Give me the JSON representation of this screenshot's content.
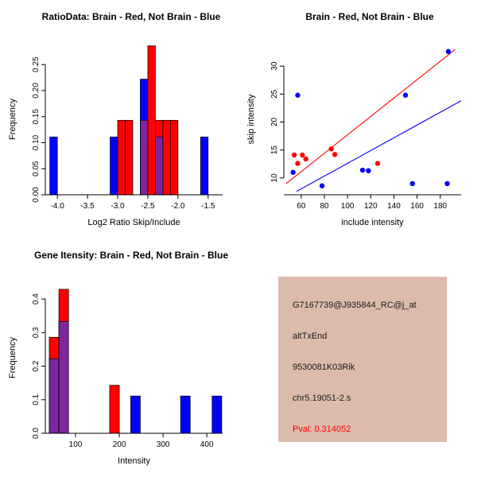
{
  "colors": {
    "red": "#FF0000",
    "blue": "#0000FF",
    "purple": "#7D26A0",
    "axis": "#000000",
    "info_bg": "#DCBBAC",
    "info_text": "#1A1A1A",
    "pval_color": "#FF0000"
  },
  "chart_data": [
    {
      "id": "ratio_hist",
      "type": "bar",
      "title": "RatioData: Brain - Red, Not Brain - Blue",
      "xlabel": "Log2 Ratio Skip/Include",
      "ylabel": "Frequency",
      "xlim": [
        -4.2,
        -1.26
      ],
      "ylim": [
        0,
        0.29
      ],
      "xticks": [
        -4.0,
        -3.5,
        -3.0,
        -2.5,
        -2.0,
        -1.5
      ],
      "xtick_labels": [
        "-4.0",
        "-3.5",
        "-3.0",
        "-2.5",
        "-2.0",
        "-1.5"
      ],
      "yticks": [
        0,
        0.05,
        0.1,
        0.15,
        0.2,
        0.25
      ],
      "ytick_labels": [
        "0.00",
        "0.05",
        "0.10",
        "0.15",
        "0.20",
        "0.25"
      ],
      "bars": [
        {
          "x0": -4.125,
          "x1": -4.0,
          "h": 0.111,
          "color": "blue"
        },
        {
          "x0": -3.125,
          "x1": -3.0,
          "h": 0.111,
          "color": "blue"
        },
        {
          "x0": -3.0,
          "x1": -2.875,
          "h": 0.143,
          "color": "red"
        },
        {
          "x0": -2.875,
          "x1": -2.75,
          "h": 0.143,
          "color": "red"
        },
        {
          "x0": -2.625,
          "x1": -2.5,
          "h": 0.222,
          "color": "blue"
        },
        {
          "x0": -2.625,
          "x1": -2.5,
          "h": 0.143,
          "color": "purple"
        },
        {
          "x0": -2.5,
          "x1": -2.375,
          "h": 0.286,
          "color": "red"
        },
        {
          "x0": -2.375,
          "x1": -2.25,
          "h": 0.143,
          "color": "red"
        },
        {
          "x0": -2.375,
          "x1": -2.25,
          "h": 0.111,
          "color": "purple"
        },
        {
          "x0": -2.25,
          "x1": -2.125,
          "h": 0.143,
          "color": "red"
        },
        {
          "x0": -2.125,
          "x1": -2.0,
          "h": 0.143,
          "color": "red"
        },
        {
          "x0": -1.625,
          "x1": -1.5,
          "h": 0.111,
          "color": "blue"
        }
      ]
    },
    {
      "id": "scatter",
      "type": "scatter",
      "title": "Brain - Red, Not Brain - Blue",
      "xlabel": "include intensity",
      "ylabel": "skip intensity",
      "xlim": [
        45,
        198
      ],
      "ylim": [
        7,
        34
      ],
      "xticks": [
        60,
        80,
        100,
        120,
        140,
        160,
        180
      ],
      "xtick_labels": [
        "60",
        "80",
        "100",
        "120",
        "140",
        "160",
        "180"
      ],
      "yticks": [
        10,
        15,
        20,
        25,
        30
      ],
      "ytick_labels": [
        "10",
        "15",
        "20",
        "25",
        "30"
      ],
      "points": [
        {
          "x": 57,
          "y": 24.8,
          "color": "blue"
        },
        {
          "x": 150,
          "y": 24.8,
          "color": "blue"
        },
        {
          "x": 53,
          "y": 11.0,
          "color": "blue"
        },
        {
          "x": 78,
          "y": 8.6,
          "color": "blue"
        },
        {
          "x": 113,
          "y": 11.4,
          "color": "blue"
        },
        {
          "x": 118,
          "y": 11.3,
          "color": "blue"
        },
        {
          "x": 156,
          "y": 9.0,
          "color": "blue"
        },
        {
          "x": 186,
          "y": 9.0,
          "color": "blue"
        },
        {
          "x": 187,
          "y": 32.6,
          "color": "blue"
        },
        {
          "x": 54,
          "y": 14.1,
          "color": "red"
        },
        {
          "x": 57,
          "y": 12.6,
          "color": "red"
        },
        {
          "x": 61,
          "y": 14.1,
          "color": "red"
        },
        {
          "x": 64,
          "y": 13.4,
          "color": "red"
        },
        {
          "x": 86,
          "y": 15.2,
          "color": "red"
        },
        {
          "x": 89,
          "y": 14.2,
          "color": "red"
        },
        {
          "x": 126,
          "y": 12.6,
          "color": "red"
        }
      ],
      "lines": [
        {
          "x1": 47,
          "y1": 9.0,
          "x2": 193,
          "y2": 33.0,
          "color": "red"
        },
        {
          "x1": 56,
          "y1": 7.6,
          "x2": 198,
          "y2": 23.8,
          "color": "blue"
        }
      ]
    },
    {
      "id": "gene_hist",
      "type": "bar",
      "title": "Gene Itensity: Brain - Red, Not Brain - Blue",
      "xlabel": "Intensity",
      "ylabel": "Frequency",
      "xlim": [
        31,
        436
      ],
      "ylim": [
        0,
        0.45
      ],
      "xticks": [
        100,
        200,
        300,
        400
      ],
      "xtick_labels": [
        "100",
        "200",
        "300",
        "400"
      ],
      "yticks": [
        0,
        0.1,
        0.2,
        0.3,
        0.4
      ],
      "ytick_labels": [
        "0.0",
        "0.1",
        "0.2",
        "0.3",
        "0.4"
      ],
      "bars": [
        {
          "x0": 40,
          "x1": 62,
          "h": 0.286,
          "color": "red"
        },
        {
          "x0": 40,
          "x1": 62,
          "h": 0.222,
          "color": "purple"
        },
        {
          "x0": 62,
          "x1": 84,
          "h": 0.429,
          "color": "red"
        },
        {
          "x0": 62,
          "x1": 84,
          "h": 0.333,
          "color": "purple"
        },
        {
          "x0": 178,
          "x1": 200,
          "h": 0.143,
          "color": "red"
        },
        {
          "x0": 226,
          "x1": 248,
          "h": 0.111,
          "color": "blue"
        },
        {
          "x0": 340,
          "x1": 362,
          "h": 0.111,
          "color": "blue"
        },
        {
          "x0": 412,
          "x1": 434,
          "h": 0.111,
          "color": "blue"
        }
      ]
    }
  ],
  "info_box": {
    "lines": [
      "G7167739@J935844_RC@j_at",
      "altTxEnd",
      "9530081K03Rik",
      "chr5.19051-2.s"
    ],
    "pval": "Pval: 0.314052"
  }
}
